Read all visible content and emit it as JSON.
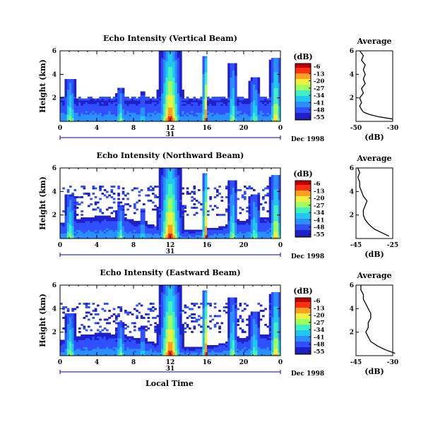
{
  "figure": {
    "xlabel": "Local Time",
    "date_label": "Dec 1998",
    "day_label": "31",
    "colorbar_unit": "(dB)",
    "avg_title": "Average",
    "avg_xlabel": "(dB)"
  },
  "colors": {
    "colormap": [
      "#1f1f7a",
      "#2020c8",
      "#3050ff",
      "#2a90ff",
      "#20c8f0",
      "#40f0c0",
      "#a0ff60",
      "#f0f040",
      "#ffa020",
      "#ff3010",
      "#c00000"
    ],
    "axis": "#000000",
    "band": "#0000a0"
  },
  "chart_data": [
    {
      "type": "heatmap",
      "title": "Echo Intensity (Vertical Beam)",
      "ylabel": "Height (km)",
      "xlim": [
        0,
        24
      ],
      "xticks": [
        "0",
        "4",
        "8",
        "12",
        "16",
        "20",
        "0"
      ],
      "ylim": [
        0,
        6
      ],
      "yticks": [
        "2",
        "4",
        "6"
      ],
      "colorbar_ticks": [
        "-6",
        "-13",
        "-20",
        "-27",
        "-34",
        "-41",
        "-48",
        "-55"
      ],
      "profile": {
        "xlim": [
          -50,
          -30
        ],
        "xticks": [
          "-50",
          "-30"
        ],
        "yticks": [
          "2",
          "4",
          "6"
        ],
        "heights": [
          0.2,
          0.4,
          0.6,
          0.8,
          1.0,
          1.3,
          1.6,
          2.0,
          2.4,
          2.8,
          3.2,
          3.6,
          4.0,
          4.4,
          4.8,
          5.2,
          5.6,
          6.0
        ],
        "values": [
          -30,
          -38,
          -43,
          -46,
          -47,
          -48,
          -47,
          -48,
          -46,
          -47,
          -45,
          -46,
          -45,
          -46,
          -45,
          -47,
          -46,
          -48
        ]
      }
    },
    {
      "type": "heatmap",
      "title": "Echo Intensity (Northward Beam)",
      "ylabel": "Height (km)",
      "xlim": [
        0,
        24
      ],
      "xticks": [
        "0",
        "4",
        "8",
        "12",
        "16",
        "20",
        "0"
      ],
      "ylim": [
        0,
        6
      ],
      "yticks": [
        "2",
        "4",
        "6"
      ],
      "colorbar_ticks": [
        "-6",
        "-13",
        "-20",
        "-27",
        "-34",
        "-41",
        "-48",
        "-55"
      ],
      "profile": {
        "xlim": [
          -45,
          -25
        ],
        "xticks": [
          "-45",
          "-25"
        ],
        "yticks": [
          "2",
          "4",
          "6"
        ],
        "heights": [
          0.2,
          0.5,
          0.8,
          1.2,
          1.6,
          2.0,
          2.4,
          2.8,
          3.2,
          3.6,
          4.0,
          4.4,
          4.8,
          5.2,
          5.6,
          6.0
        ],
        "values": [
          -27,
          -31,
          -35,
          -38,
          -40,
          -41,
          -41,
          -40,
          -39,
          -41,
          -42,
          -43,
          -43,
          -44,
          -43,
          -44
        ]
      }
    },
    {
      "type": "heatmap",
      "title": "Echo Intensity (Eastward Beam)",
      "ylabel": "Height (km)",
      "xlim": [
        0,
        24
      ],
      "xticks": [
        "0",
        "4",
        "8",
        "12",
        "16",
        "20",
        "0"
      ],
      "ylim": [
        0,
        6
      ],
      "yticks": [
        "2",
        "4",
        "6"
      ],
      "colorbar_ticks": [
        "-6",
        "-13",
        "-20",
        "-27",
        "-34",
        "-41",
        "-48",
        "-55"
      ],
      "profile": {
        "xlim": [
          -45,
          -30
        ],
        "xticks": [
          "-45",
          "-30"
        ],
        "yticks": [
          "2",
          "4",
          "6"
        ],
        "heights": [
          0.2,
          0.5,
          0.8,
          1.2,
          1.6,
          2.0,
          2.4,
          2.8,
          3.2,
          3.6,
          4.0,
          4.4,
          4.8,
          5.2,
          5.6,
          6.0
        ],
        "values": [
          -29,
          -33,
          -36,
          -39,
          -40,
          -41,
          -40,
          -40,
          -39,
          -39,
          -40,
          -41,
          -42,
          -42,
          -43,
          -43
        ]
      }
    }
  ]
}
